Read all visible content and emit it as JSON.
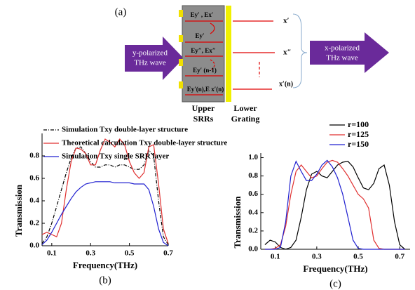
{
  "diagram": {
    "panel_label": "(a)",
    "input_wave": [
      "y-polarized",
      "THz wave"
    ],
    "output_wave": [
      "x-polarized",
      "THz wave"
    ],
    "inner_labels": [
      "Ey′ ,  Ex′",
      "Ey′",
      "Ey″, Ex″",
      "Ey′ (n-1)",
      "Ey′(n),E x′(n)"
    ],
    "outputs": [
      "x′",
      "x″",
      "x′(n)"
    ],
    "upper_label": [
      "Upper",
      "SRRs"
    ],
    "lower_label": [
      "Lower",
      "Grating"
    ]
  },
  "chart_data": [
    {
      "type": "line",
      "label": "(b)",
      "x_label": "Frequency(THz)",
      "y_label": "Transmission",
      "legend": "top",
      "xlim": [
        0.05,
        0.7
      ],
      "xticks": [
        0.1,
        0.3,
        0.5,
        0.7
      ],
      "ylim": [
        0,
        1.0
      ],
      "yticks": [
        {
          "value": 0,
          "label": "0.0"
        },
        0.2,
        0.4,
        0.6,
        0.8
      ],
      "x": [
        0.05,
        0.075,
        0.1,
        0.125,
        0.15,
        0.175,
        0.2,
        0.225,
        0.25,
        0.275,
        0.3,
        0.325,
        0.35,
        0.375,
        0.4,
        0.425,
        0.45,
        0.475,
        0.5,
        0.525,
        0.55,
        0.575,
        0.6,
        0.625,
        0.65,
        0.675,
        0.7
      ],
      "series": [
        {
          "name": "Simulation Txy double-layer structure",
          "color": "#000000",
          "line_style": "dash-dot",
          "values": [
            0.02,
            0.08,
            0.2,
            0.35,
            0.5,
            0.65,
            0.78,
            0.87,
            0.88,
            0.82,
            0.75,
            0.7,
            0.7,
            0.72,
            0.72,
            0.7,
            0.72,
            0.72,
            0.7,
            0.68,
            0.68,
            0.72,
            0.85,
            0.8,
            0.4,
            0.08,
            0.01
          ]
        },
        {
          "name": "Theoretical calculation Txy double-layer structure",
          "color": "#e03030",
          "line_style": "solid",
          "values": [
            0.1,
            0.12,
            0.1,
            0.08,
            0.2,
            0.5,
            0.75,
            0.87,
            0.86,
            0.82,
            0.72,
            0.72,
            0.85,
            0.95,
            0.92,
            0.88,
            0.95,
            0.9,
            0.75,
            0.65,
            0.6,
            0.65,
            0.88,
            0.9,
            0.55,
            0.15,
            0.02
          ]
        },
        {
          "name": "Simulation Txy single SRR layer",
          "color": "#2020d0",
          "line_style": "solid",
          "values": [
            0.01,
            0.05,
            0.12,
            0.2,
            0.28,
            0.35,
            0.42,
            0.48,
            0.52,
            0.55,
            0.56,
            0.57,
            0.57,
            0.57,
            0.57,
            0.56,
            0.56,
            0.56,
            0.56,
            0.55,
            0.55,
            0.55,
            0.5,
            0.35,
            0.15,
            0.03,
            0.0
          ]
        }
      ]
    },
    {
      "type": "line",
      "label": "(c)",
      "x_label": "Frequency(THz)",
      "y_label": "Transmission",
      "legend": "upper right",
      "xlim": [
        0.03,
        0.75
      ],
      "xticks": [
        0.1,
        0.3,
        0.5,
        0.7
      ],
      "ylim": [
        0,
        1.05
      ],
      "yticks": [
        {
          "value": 0,
          "label": "0.0"
        },
        0.2,
        0.4,
        0.6,
        0.8,
        {
          "value": 1,
          "label": "1.0"
        }
      ],
      "x": [
        0.05,
        0.075,
        0.1,
        0.125,
        0.15,
        0.175,
        0.2,
        0.225,
        0.25,
        0.275,
        0.3,
        0.325,
        0.35,
        0.375,
        0.4,
        0.425,
        0.45,
        0.475,
        0.5,
        0.525,
        0.55,
        0.575,
        0.6,
        0.625,
        0.65,
        0.675,
        0.7,
        0.725
      ],
      "series": [
        {
          "name": "r=100",
          "color": "#000000",
          "line_style": "solid",
          "values": [
            0.05,
            0.1,
            0.08,
            0.02,
            0.0,
            0.02,
            0.1,
            0.35,
            0.65,
            0.82,
            0.85,
            0.8,
            0.78,
            0.85,
            0.92,
            0.95,
            0.96,
            0.9,
            0.78,
            0.67,
            0.65,
            0.72,
            0.88,
            0.92,
            0.7,
            0.3,
            0.05,
            0.0
          ]
        },
        {
          "name": "r=125",
          "color": "#e03030",
          "line_style": "solid",
          "values": [
            0,
            0,
            0.01,
            0.05,
            0.25,
            0.6,
            0.85,
            0.92,
            0.85,
            0.78,
            0.8,
            0.88,
            0.95,
            0.97,
            0.95,
            0.88,
            0.8,
            0.7,
            0.6,
            0.55,
            0.45,
            0.1,
            0.01,
            0,
            0,
            0,
            0,
            0
          ]
        },
        {
          "name": "r=150",
          "color": "#2020d0",
          "line_style": "solid",
          "values": [
            0,
            0,
            0,
            0.02,
            0.3,
            0.8,
            0.96,
            0.85,
            0.75,
            0.75,
            0.82,
            0.92,
            0.97,
            0.9,
            0.78,
            0.6,
            0.35,
            0.1,
            0.01,
            0,
            0,
            0,
            0,
            0,
            0,
            0,
            0,
            0
          ]
        }
      ]
    }
  ]
}
